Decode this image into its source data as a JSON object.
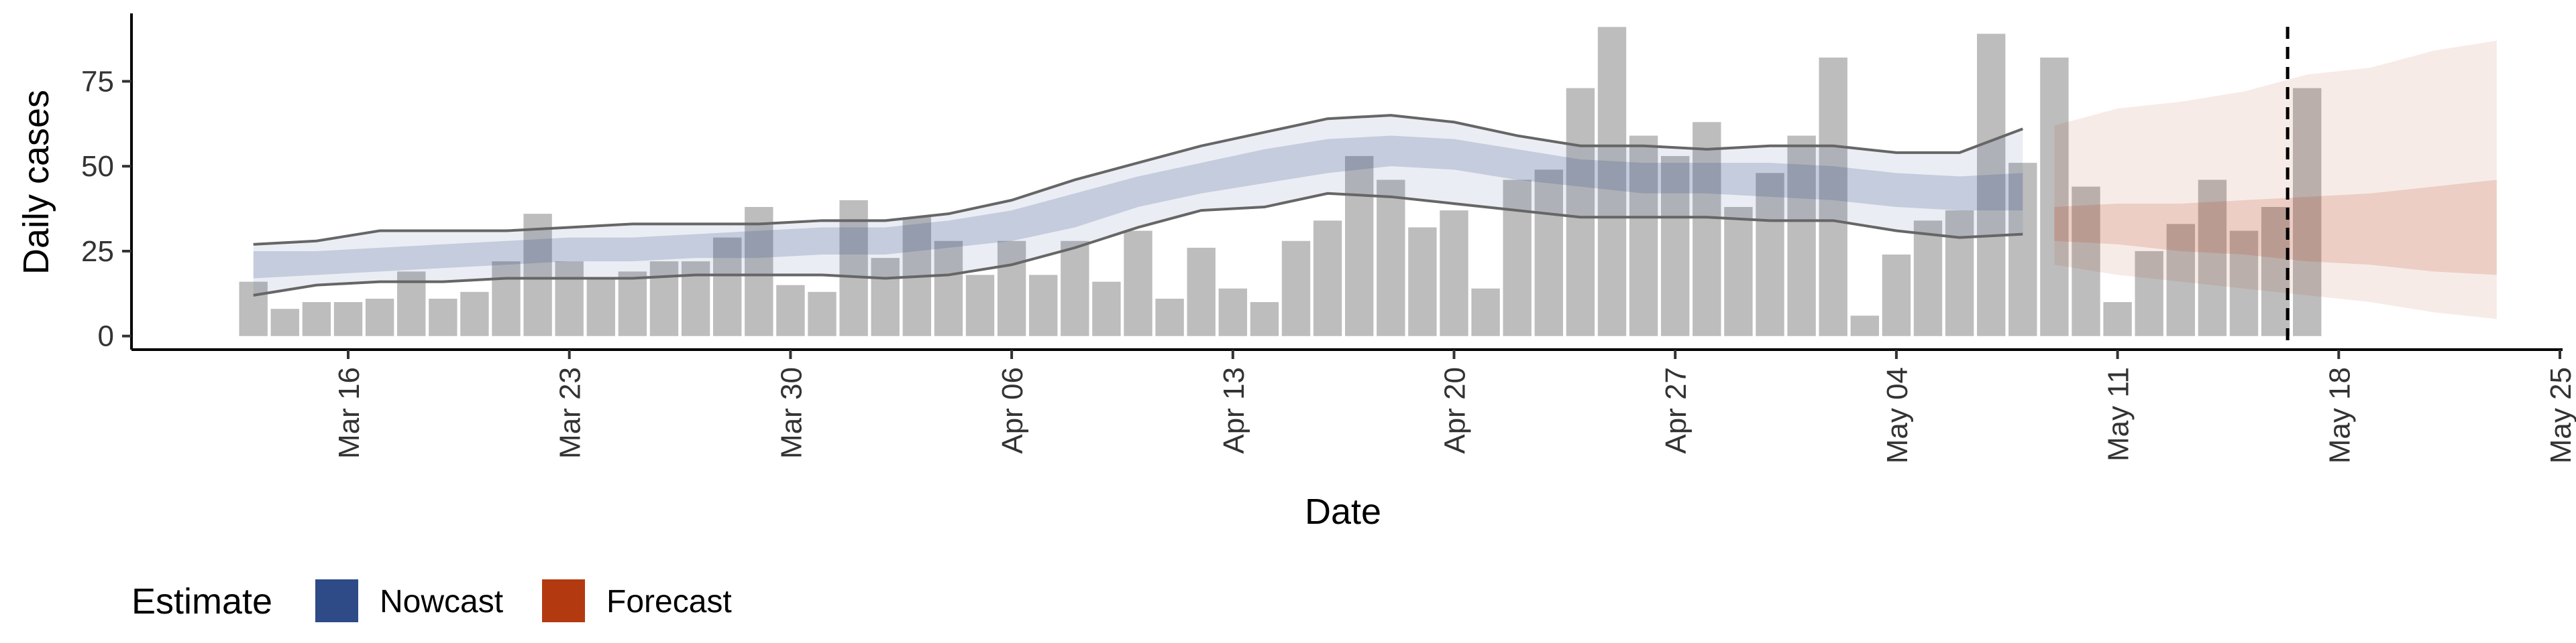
{
  "chart_data": {
    "type": "bar",
    "xlabel": "Date",
    "ylabel": "Daily cases",
    "ylim": [
      -4,
      95
    ],
    "yticks": [
      0,
      25,
      50,
      75
    ],
    "xticks": [
      "Mar 16",
      "Mar 23",
      "Mar 30",
      "Apr 06",
      "Apr 13",
      "Apr 20",
      "Apr 27",
      "May 04",
      "May 11",
      "May 18",
      "May 25"
    ],
    "dates": [
      "2020-03-13",
      "2020-03-14",
      "2020-03-15",
      "2020-03-16",
      "2020-03-17",
      "2020-03-18",
      "2020-03-19",
      "2020-03-20",
      "2020-03-21",
      "2020-03-22",
      "2020-03-23",
      "2020-03-24",
      "2020-03-25",
      "2020-03-26",
      "2020-03-27",
      "2020-03-28",
      "2020-03-29",
      "2020-03-30",
      "2020-03-31",
      "2020-04-01",
      "2020-04-02",
      "2020-04-03",
      "2020-04-04",
      "2020-04-05",
      "2020-04-06",
      "2020-04-07",
      "2020-04-08",
      "2020-04-09",
      "2020-04-10",
      "2020-04-11",
      "2020-04-12",
      "2020-04-13",
      "2020-04-14",
      "2020-04-15",
      "2020-04-16",
      "2020-04-17",
      "2020-04-18",
      "2020-04-19",
      "2020-04-20",
      "2020-04-21",
      "2020-04-22",
      "2020-04-23",
      "2020-04-24",
      "2020-04-25",
      "2020-04-26",
      "2020-04-27",
      "2020-04-28",
      "2020-04-29",
      "2020-04-30",
      "2020-05-01",
      "2020-05-02",
      "2020-05-03",
      "2020-05-04",
      "2020-05-05",
      "2020-05-06",
      "2020-05-07",
      "2020-05-08",
      "2020-05-09",
      "2020-05-10",
      "2020-05-11",
      "2020-05-12",
      "2020-05-13",
      "2020-05-14",
      "2020-05-15",
      "2020-05-16",
      "2020-05-17"
    ],
    "daily_cases": [
      16,
      8,
      10,
      10,
      11,
      19,
      11,
      13,
      22,
      36,
      22,
      17,
      19,
      22,
      22,
      29,
      38,
      15,
      13,
      40,
      23,
      35,
      28,
      18,
      28,
      18,
      28,
      16,
      31,
      11,
      26,
      14,
      10,
      28,
      34,
      53,
      46,
      32,
      37,
      14,
      46,
      49,
      73,
      91,
      59,
      53,
      63,
      38,
      48,
      59,
      82,
      6,
      24,
      34,
      37,
      89,
      51,
      82,
      44,
      10,
      25,
      33,
      46,
      31,
      38,
      73
    ],
    "nowcast": {
      "dates": [
        "2020-03-13",
        "2020-03-15",
        "2020-03-17",
        "2020-03-19",
        "2020-03-21",
        "2020-03-23",
        "2020-03-25",
        "2020-03-27",
        "2020-03-29",
        "2020-03-31",
        "2020-04-02",
        "2020-04-04",
        "2020-04-06",
        "2020-04-08",
        "2020-04-10",
        "2020-04-12",
        "2020-04-14",
        "2020-04-16",
        "2020-04-18",
        "2020-04-20",
        "2020-04-22",
        "2020-04-24",
        "2020-04-26",
        "2020-04-28",
        "2020-04-30",
        "2020-05-02",
        "2020-05-04",
        "2020-05-06",
        "2020-05-08"
      ],
      "lower90": [
        12,
        15,
        16,
        16,
        17,
        17,
        17,
        18,
        18,
        18,
        17,
        18,
        21,
        26,
        32,
        37,
        38,
        42,
        41,
        39,
        37,
        35,
        35,
        35,
        34,
        34,
        31,
        29,
        30
      ],
      "lower50": [
        17,
        18,
        19,
        20,
        21,
        22,
        22,
        23,
        23,
        24,
        24,
        26,
        28,
        32,
        38,
        42,
        45,
        48,
        50,
        49,
        46,
        44,
        42,
        42,
        41,
        40,
        38,
        37,
        37
      ],
      "median": [
        21,
        22,
        23,
        24,
        25,
        26,
        26,
        27,
        28,
        29,
        29,
        31,
        33,
        38,
        43,
        47,
        50,
        53,
        54,
        53,
        50,
        48,
        47,
        47,
        46,
        46,
        44,
        43,
        43
      ],
      "upper50": [
        25,
        25,
        26,
        27,
        28,
        29,
        29,
        30,
        31,
        32,
        32,
        34,
        37,
        42,
        47,
        51,
        55,
        58,
        59,
        58,
        55,
        52,
        51,
        51,
        51,
        50,
        48,
        47,
        48
      ],
      "upper90": [
        27,
        28,
        31,
        31,
        31,
        32,
        33,
        33,
        33,
        34,
        34,
        36,
        40,
        46,
        51,
        56,
        60,
        64,
        65,
        63,
        59,
        56,
        56,
        55,
        56,
        56,
        54,
        54,
        61
      ]
    },
    "forecast": {
      "dates": [
        "2020-05-09",
        "2020-05-11",
        "2020-05-13",
        "2020-05-15",
        "2020-05-17",
        "2020-05-19",
        "2020-05-21",
        "2020-05-23"
      ],
      "lower90": [
        21,
        18,
        16,
        14,
        12,
        10,
        7,
        5
      ],
      "lower50": [
        28,
        27,
        25,
        24,
        22,
        21,
        19,
        18
      ],
      "median": [
        33,
        32,
        31,
        30,
        29,
        28,
        27,
        27
      ],
      "upper50": [
        38,
        39,
        39,
        40,
        41,
        42,
        44,
        46
      ],
      "upper90": [
        62,
        67,
        69,
        72,
        77,
        79,
        84,
        87
      ]
    },
    "cutoff_date": "2020-05-16",
    "legend": {
      "title": "Estimate",
      "entries": [
        {
          "label": "Nowcast",
          "color": "#2e4a87"
        },
        {
          "label": "Forecast",
          "color": "#b33a10"
        }
      ],
      "placement": "bottom-left"
    },
    "colors": {
      "bars": "#bdbdbd",
      "nowcast": "#2e4a87",
      "forecast": "#b33a10",
      "median_lines": "#666666",
      "cutoff": "#000000"
    }
  }
}
